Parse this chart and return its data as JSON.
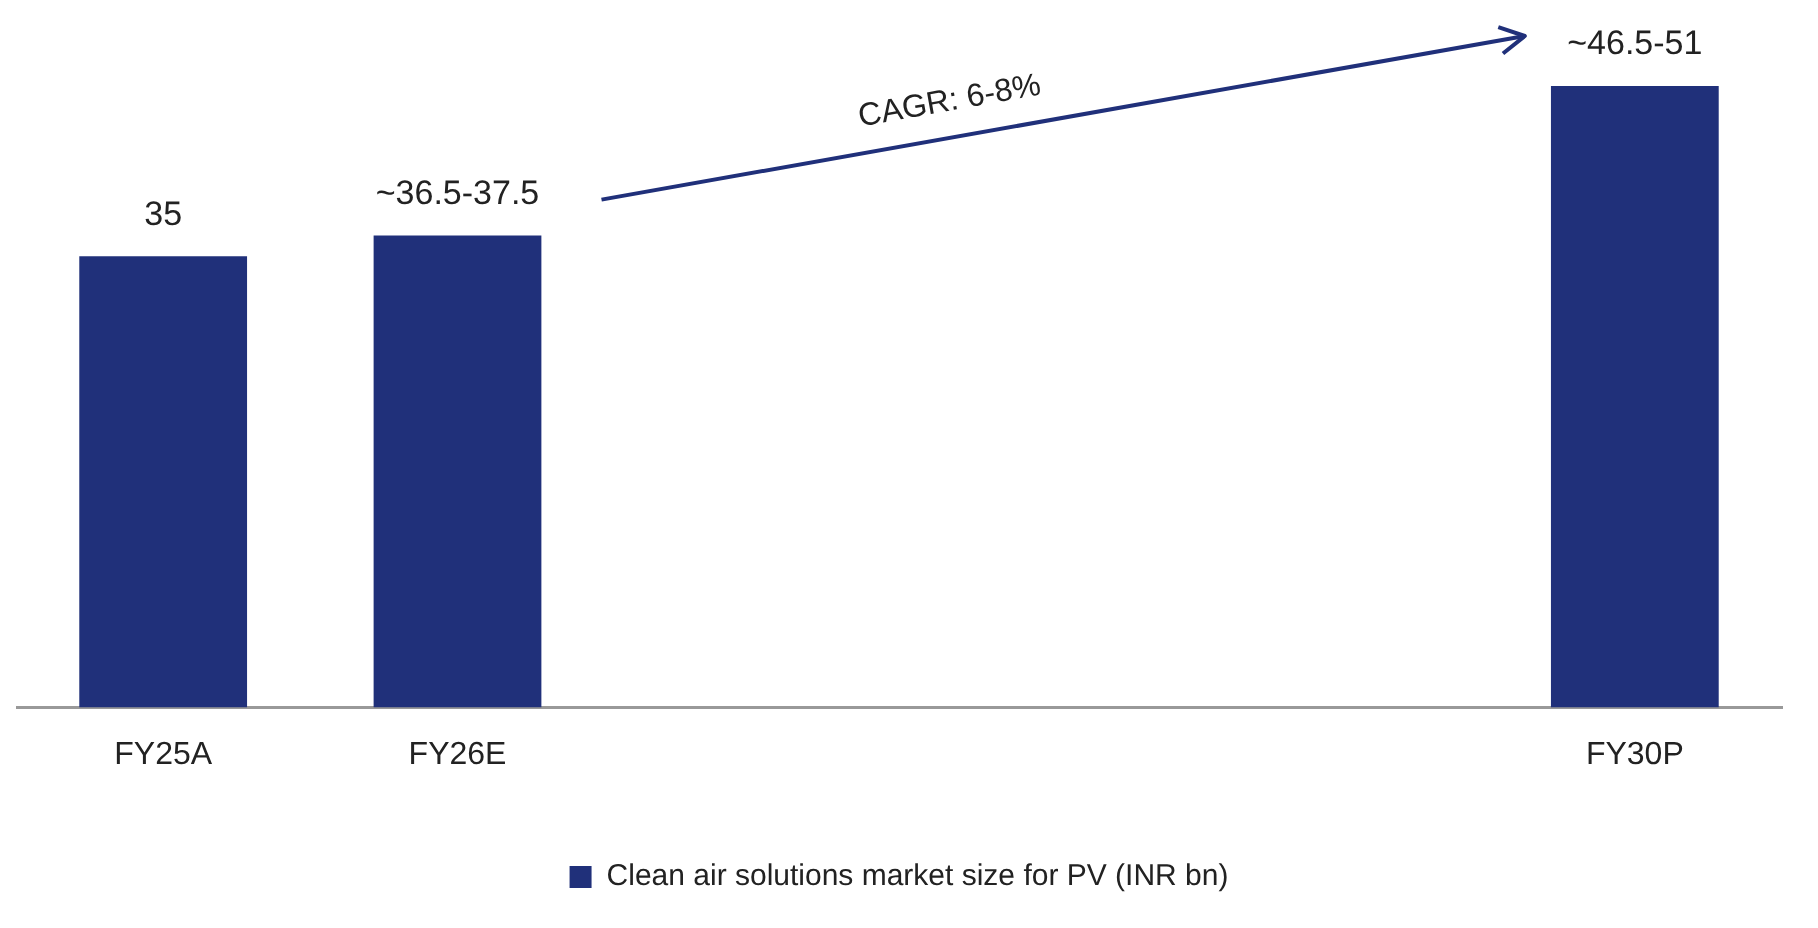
{
  "chart_data": {
    "type": "bar",
    "categories": [
      "FY25A",
      "FY26E",
      null,
      null,
      null,
      "FY30P"
    ],
    "series": [
      {
        "name": "Clean air solutions market size for PV (INR bn)",
        "color": "#20307a",
        "values": [
          35,
          36.6,
          null,
          null,
          null,
          48.2
        ],
        "value_labels": [
          "35",
          "~36.5-37.5",
          null,
          null,
          null,
          "~46.5-51"
        ]
      }
    ],
    "annotations": [
      "CAGR: 6-8%"
    ],
    "legend": "bottom",
    "grid": false
  }
}
